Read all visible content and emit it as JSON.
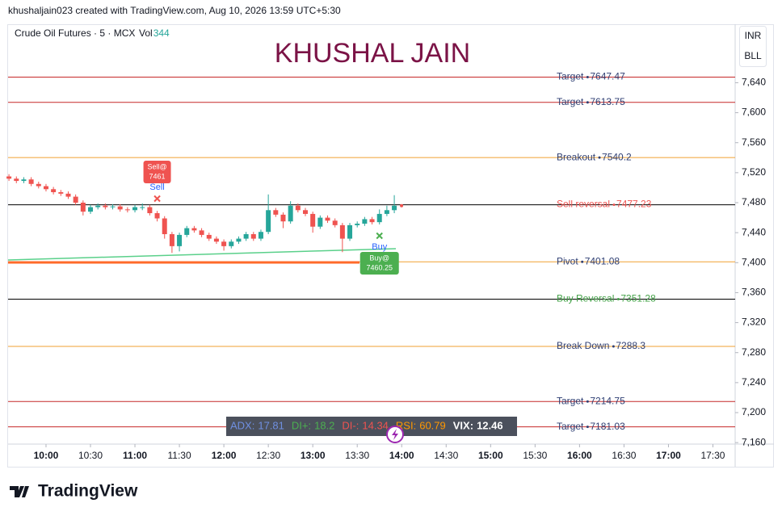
{
  "header": {
    "text": "khushaljain023 created with TradingView.com, Aug 10, 2026 13:59 UTC+5:30"
  },
  "footer": {
    "brand": "TradingView"
  },
  "chart_data": {
    "type": "candlestick",
    "title": "KHUSHAL JAIN",
    "symbol": "Crude Oil Futures · 5 · MCX",
    "volume_label": "Vol",
    "volume": 344,
    "currency": "INR",
    "unit": "BLL",
    "x": [
      575,
      580,
      585,
      590,
      595,
      600,
      605,
      610,
      615,
      620,
      625,
      630,
      635,
      640,
      645,
      650,
      655,
      660,
      665,
      670,
      675,
      680,
      685,
      690,
      695,
      700,
      705,
      710,
      715,
      720,
      725,
      730,
      735,
      740,
      745,
      750,
      755,
      760,
      765,
      770,
      775,
      780,
      785,
      790,
      795,
      800,
      805,
      810,
      815,
      820,
      825,
      830,
      835
    ],
    "open": [
      7515,
      7512,
      7509,
      7511,
      7505,
      7502,
      7498,
      7494,
      7492,
      7488,
      7480,
      7468,
      7474,
      7476,
      7474,
      7475,
      7471,
      7470,
      7474,
      7474,
      7466,
      7459,
      7438,
      7422,
      7437,
      7446,
      7443,
      7437,
      7432,
      7428,
      7422,
      7428,
      7432,
      7438,
      7432,
      7441,
      7470,
      7464,
      7455,
      7476,
      7470,
      7465,
      7448,
      7460,
      7456,
      7450,
      7432,
      7450,
      7452,
      7458,
      7454,
      7465,
      7470
    ],
    "high": [
      7518,
      7515,
      7514,
      7514,
      7508,
      7505,
      7501,
      7497,
      7495,
      7491,
      7483,
      7477,
      7479,
      7479,
      7478,
      7478,
      7474,
      7477,
      7479,
      7477,
      7469,
      7462,
      7441,
      7440,
      7449,
      7449,
      7446,
      7440,
      7435,
      7431,
      7431,
      7435,
      7441,
      7441,
      7444,
      7491,
      7473,
      7467,
      7482,
      7479,
      7473,
      7468,
      7463,
      7463,
      7459,
      7453,
      7453,
      7455,
      7461,
      7461,
      7471,
      7476,
      7490
    ],
    "low": [
      7509,
      7506,
      7506,
      7502,
      7499,
      7495,
      7491,
      7489,
      7485,
      7477,
      7463,
      7465,
      7471,
      7471,
      7471,
      7468,
      7467,
      7467,
      7470,
      7463,
      7455,
      7432,
      7413,
      7415,
      7434,
      7440,
      7434,
      7429,
      7425,
      7416,
      7419,
      7425,
      7429,
      7429,
      7429,
      7438,
      7461,
      7446,
      7452,
      7467,
      7462,
      7440,
      7445,
      7453,
      7447,
      7414,
      7429,
      7447,
      7449,
      7451,
      7451,
      7462,
      7466
    ],
    "close": [
      7512,
      7509,
      7511,
      7505,
      7502,
      7498,
      7494,
      7492,
      7488,
      7480,
      7468,
      7474,
      7476,
      7474,
      7475,
      7471,
      7470,
      7474,
      7474,
      7466,
      7459,
      7438,
      7422,
      7437,
      7446,
      7443,
      7437,
      7432,
      7428,
      7422,
      7428,
      7432,
      7438,
      7432,
      7441,
      7470,
      7464,
      7455,
      7476,
      7470,
      7465,
      7448,
      7460,
      7456,
      7450,
      7432,
      7450,
      7452,
      7458,
      7454,
      7465,
      7470,
      7476
    ],
    "up_color": "#26a69a",
    "down_color": "#ef5350",
    "xlim": [
      574.4,
      1065
    ],
    "ylim": [
      7158,
      7718
    ],
    "xticks": [
      {
        "value": 600,
        "label": "10:00"
      },
      {
        "value": 630,
        "label": "10:30"
      },
      {
        "value": 660,
        "label": "11:00"
      },
      {
        "value": 690,
        "label": "11:30"
      },
      {
        "value": 720,
        "label": "12:00"
      },
      {
        "value": 750,
        "label": "12:30"
      },
      {
        "value": 780,
        "label": "13:00"
      },
      {
        "value": 810,
        "label": "13:30"
      },
      {
        "value": 840,
        "label": "14:00"
      },
      {
        "value": 870,
        "label": "14:30"
      },
      {
        "value": 900,
        "label": "15:00"
      },
      {
        "value": 930,
        "label": "15:30"
      },
      {
        "value": 960,
        "label": "16:00"
      },
      {
        "value": 990,
        "label": "16:30"
      },
      {
        "value": 1020,
        "label": "17:00"
      },
      {
        "value": 1050,
        "label": "17:30"
      }
    ],
    "yticks": [
      {
        "value": 7160,
        "label": "7,160"
      },
      {
        "value": 7200,
        "label": "7,200"
      },
      {
        "value": 7240,
        "label": "7,240"
      },
      {
        "value": 7280,
        "label": "7,280"
      },
      {
        "value": 7320,
        "label": "7,320"
      },
      {
        "value": 7360,
        "label": "7,360"
      },
      {
        "value": 7400,
        "label": "7,400"
      },
      {
        "value": 7440,
        "label": "7,440"
      },
      {
        "value": 7480,
        "label": "7,480"
      },
      {
        "value": 7520,
        "label": "7,520"
      },
      {
        "value": 7560,
        "label": "7,560"
      },
      {
        "value": 7600,
        "label": "7,600"
      },
      {
        "value": 7640,
        "label": "7,640"
      }
    ],
    "levels": [
      {
        "name": "Target",
        "value": 7647.47,
        "line_color": "#c62828",
        "text_color": "#2f3f73"
      },
      {
        "name": "Target",
        "value": 7613.75,
        "line_color": "#c62828",
        "text_color": "#2f3f73"
      },
      {
        "name": "Breakout",
        "value": 7540.2,
        "line_color": "#f0a030",
        "text_color": "#2f3f73"
      },
      {
        "name": "Sell reversal",
        "value": 7477.23,
        "line_color": "#000000",
        "text_color": "#ef5350"
      },
      {
        "name": "Pivot",
        "value": 7401.08,
        "line_color": "#f0a030",
        "text_color": "#2f3f73"
      },
      {
        "name": "Buy Reversal",
        "value": 7351.28,
        "line_color": "#000000",
        "text_color": "#43a047"
      },
      {
        "name": "Break Down",
        "value": 7288.3,
        "line_color": "#f0a030",
        "text_color": "#2f3f73"
      },
      {
        "name": "Target",
        "value": 7214.75,
        "line_color": "#c62828",
        "text_color": "#2f3f73"
      },
      {
        "name": "Target",
        "value": 7181.03,
        "line_color": "#c62828",
        "text_color": "#2f3f73"
      }
    ],
    "signals": [
      {
        "label": "Sell",
        "box": "Sell@",
        "price": 7461,
        "x": 675,
        "color": "#ef5350",
        "text_color": "#2962ff"
      },
      {
        "label": "Buy",
        "box": "Buy@",
        "price": 7460.25,
        "x": 825,
        "color": "#4caf50",
        "text_color": "#2962ff"
      }
    ],
    "indicators": [
      {
        "name": "ADX:",
        "value": 17.81,
        "color": "#6f8fe0"
      },
      {
        "name": "DI+:",
        "value": 18.2,
        "color": "#4caf50"
      },
      {
        "name": "DI-:",
        "value": 14.34,
        "color": "#ef5350"
      },
      {
        "name": "RSI:",
        "value": 60.79,
        "color": "#ff9800"
      },
      {
        "name": "VIX:",
        "value": 12.46,
        "color": "#ffffff"
      }
    ]
  }
}
